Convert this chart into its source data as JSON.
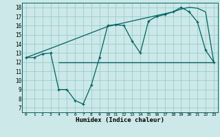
{
  "xlabel": "Humidex (Indice chaleur)",
  "background_color": "#cce8e8",
  "grid_color": "#99cccc",
  "line_color": "#006060",
  "xlim": [
    -0.5,
    23.5
  ],
  "ylim": [
    6.5,
    18.5
  ],
  "xticks": [
    0,
    1,
    2,
    3,
    4,
    5,
    6,
    7,
    8,
    9,
    10,
    11,
    12,
    13,
    14,
    15,
    16,
    17,
    18,
    19,
    20,
    21,
    22,
    23
  ],
  "yticks": [
    7,
    8,
    9,
    10,
    11,
    12,
    13,
    14,
    15,
    16,
    17,
    18
  ],
  "curve1_x": [
    0,
    1,
    2,
    3,
    4,
    5,
    6,
    7,
    8,
    9,
    10,
    11,
    12,
    13,
    14,
    15,
    16,
    17,
    18,
    19,
    20,
    21,
    22,
    23
  ],
  "curve1_y": [
    12.5,
    12.5,
    12.9,
    13.0,
    9.0,
    9.0,
    7.8,
    7.4,
    9.5,
    12.5,
    16.0,
    16.1,
    16.0,
    14.3,
    13.0,
    16.5,
    17.0,
    17.2,
    17.5,
    18.0,
    17.5,
    16.4,
    13.3,
    12.0
  ],
  "curve2_x": [
    0,
    3,
    10,
    11,
    12,
    13,
    14,
    15,
    16,
    17,
    18,
    19,
    20,
    21,
    22,
    23
  ],
  "curve2_y": [
    12.5,
    13.5,
    15.9,
    16.1,
    16.3,
    16.5,
    16.7,
    16.9,
    17.1,
    17.3,
    17.5,
    17.8,
    18.0,
    17.9,
    17.5,
    12.0
  ],
  "hline_y": 12.0,
  "hline_x_start": 4,
  "hline_x_end": 23
}
